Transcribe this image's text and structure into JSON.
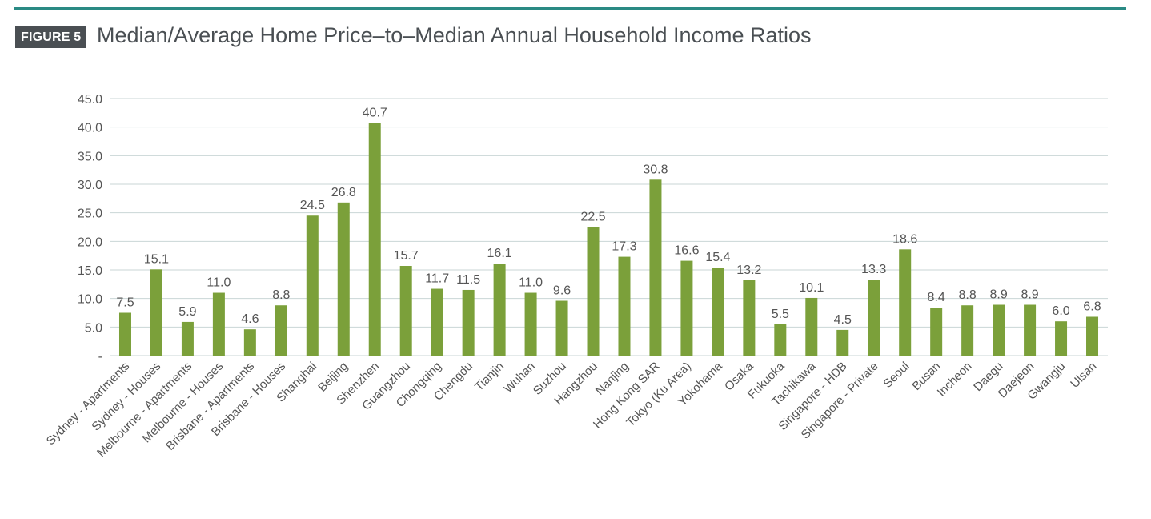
{
  "header": {
    "figure_label": "FIGURE 5",
    "title": "Median/Average Home Price–to–Median Annual Household Income Ratios"
  },
  "colors": {
    "bar": "#7ba03a",
    "rule": "#2a8a84",
    "badge": "#4a4f53",
    "grid": "#c9d6d6",
    "text": "#555555"
  },
  "chart_data": {
    "type": "bar",
    "title": "Median/Average Home Price–to–Median Annual Household Income Ratios",
    "xlabel": "",
    "ylabel": "",
    "ylim": [
      0,
      45
    ],
    "grid": true,
    "legend": "none",
    "y_ticks": [
      0,
      5,
      10,
      15,
      20,
      25,
      30,
      35,
      40,
      45
    ],
    "y_tick_labels": [
      "-",
      "5.0",
      "10.0",
      "15.0",
      "20.0",
      "25.0",
      "30.0",
      "35.0",
      "40.0",
      "45.0"
    ],
    "categories": [
      "Sydney - Apartments",
      "Sydney - Houses",
      "Melbourne - Apartments",
      "Melbourne - Houses",
      "Brisbane - Apartments",
      "Brisbane - Houses",
      "Shanghai",
      "Beijing",
      "Shenzhen",
      "Guangzhou",
      "Chongqing",
      "Chengdu",
      "Tianjin",
      "Wuhan",
      "Suzhou",
      "Hangzhou",
      "Nanjing",
      "Hong Kong SAR",
      "Tokyo (Ku Area)",
      "Yokohama",
      "Osaka",
      "Fukuoka",
      "Tachikawa",
      "Singapore - HDB",
      "Singapore - Private",
      "Seoul",
      "Busan",
      "Incheon",
      "Daegu",
      "Daejeon",
      "Gwangju",
      "Ulsan"
    ],
    "values": [
      7.5,
      15.1,
      5.9,
      11.0,
      4.6,
      8.8,
      24.5,
      26.8,
      40.7,
      15.7,
      11.7,
      11.5,
      16.1,
      11.0,
      9.6,
      22.5,
      17.3,
      30.8,
      16.6,
      15.4,
      13.2,
      5.5,
      10.1,
      4.5,
      13.3,
      18.6,
      8.4,
      8.8,
      8.9,
      8.9,
      6.0,
      6.8
    ],
    "data_labels": [
      "7.5",
      "15.1",
      "5.9",
      "11.0",
      "4.6",
      "8.8",
      "24.5",
      "26.8",
      "40.7",
      "15.7",
      "11.7",
      "11.5",
      "16.1",
      "11.0",
      "9.6",
      "22.5",
      "17.3",
      "30.8",
      "16.6",
      "15.4",
      "13.2",
      "5.5",
      "10.1",
      "4.5",
      "13.3",
      "18.6",
      "8.4",
      "8.8",
      "8.9",
      "8.9",
      "6.0",
      "6.8"
    ]
  }
}
